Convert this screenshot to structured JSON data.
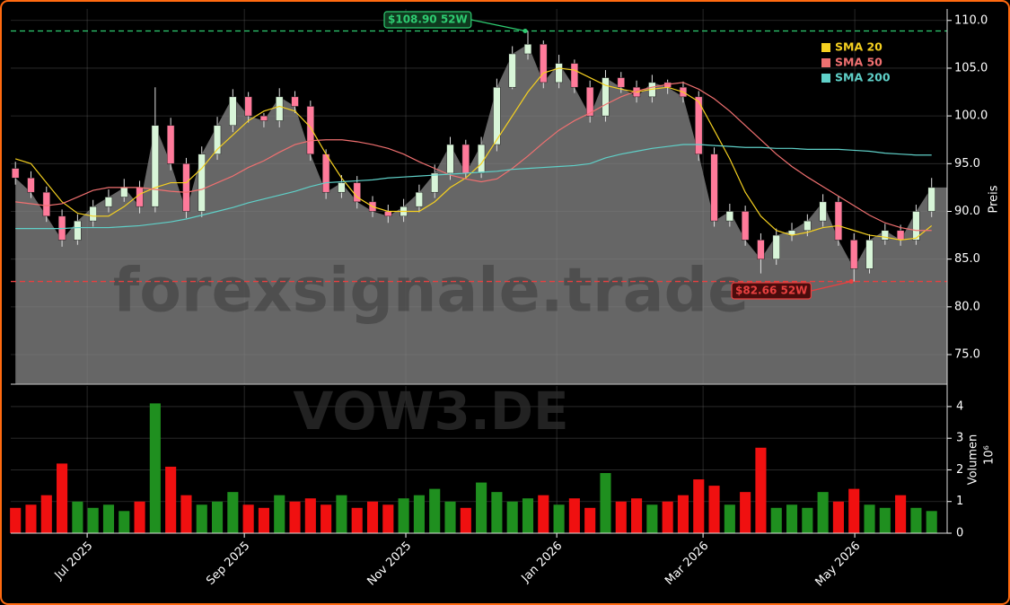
{
  "chart_data": {
    "type": "candlestick",
    "watermark": "forexsignale.trade",
    "symbol": "VOW3.DE",
    "x": [
      0,
      1,
      2,
      3,
      4,
      5,
      6,
      7,
      8,
      9,
      10,
      11,
      12,
      13,
      14,
      15,
      16,
      17,
      18,
      19,
      20,
      21,
      22,
      23,
      24,
      25,
      26,
      27,
      28,
      29,
      30,
      31,
      32,
      33,
      34,
      35,
      36,
      37,
      38,
      39,
      40,
      41,
      42,
      43,
      44,
      45,
      46,
      47,
      48,
      49,
      50,
      51,
      52,
      53,
      54,
      55,
      56,
      57,
      58,
      59
    ],
    "open": [
      94.5,
      93.5,
      92,
      89.5,
      87,
      89,
      90.5,
      91.5,
      92.5,
      90.5,
      99,
      95,
      90,
      96,
      99,
      102,
      100,
      99.5,
      102,
      101,
      96,
      92,
      93,
      91,
      90,
      89.5,
      90.5,
      92,
      94,
      97,
      94,
      97,
      103,
      106.5,
      107.5,
      103.5,
      105.5,
      103,
      100,
      104,
      103,
      102,
      103.5,
      103,
      102,
      96,
      89,
      90,
      87,
      85,
      87.5,
      88,
      89,
      91,
      87,
      84,
      87,
      88,
      87,
      90
    ],
    "high": [
      95.2,
      94.2,
      92.6,
      90.2,
      89.7,
      91.2,
      92.3,
      93.4,
      93.2,
      103,
      99.8,
      95.6,
      96.8,
      99.9,
      102.8,
      102.5,
      100.3,
      102.9,
      102.6,
      101.6,
      96.5,
      93.8,
      93.7,
      91.6,
      90.7,
      91.3,
      92.8,
      94.9,
      97.8,
      97.5,
      97.8,
      103.9,
      107.3,
      108.9,
      107.9,
      106.4,
      105.9,
      103.7,
      104.8,
      104.6,
      103.7,
      104.3,
      103.8,
      103.6,
      102.6,
      96.7,
      90.8,
      90.6,
      87.7,
      88.2,
      88.8,
      89.7,
      91.8,
      91.6,
      87.7,
      87.6,
      88.7,
      88.6,
      90.7,
      93.5
    ],
    "low": [
      92.8,
      91.4,
      88.9,
      86.3,
      86.5,
      88.4,
      89.9,
      91,
      89.8,
      89.9,
      94.3,
      89.3,
      89.4,
      95.4,
      98.3,
      99.3,
      98.8,
      98.8,
      100.3,
      95.3,
      91.3,
      91.4,
      90.3,
      89.4,
      88.8,
      88.9,
      89.9,
      91.4,
      93.3,
      93.4,
      93.5,
      96.3,
      102.8,
      105.9,
      102.9,
      102.9,
      102.4,
      99.3,
      99.4,
      102.4,
      101.4,
      101.4,
      102.3,
      101.4,
      95.3,
      88.4,
      88.4,
      86.4,
      83.5,
      84.4,
      86.9,
      87.4,
      88.4,
      86.4,
      82.66,
      83.5,
      86.5,
      86.4,
      86.5,
      89.4
    ],
    "close": [
      93.5,
      92,
      89.5,
      87,
      89,
      90.5,
      91.5,
      92.5,
      90.5,
      99,
      95,
      90,
      96,
      99,
      102,
      100,
      99.5,
      102,
      101,
      96,
      92,
      93,
      91,
      90,
      89.5,
      90.5,
      92,
      94,
      97,
      94,
      97,
      103,
      106.5,
      107.5,
      103.5,
      105.5,
      103,
      100,
      104,
      103,
      102,
      103.5,
      103,
      102,
      96,
      89,
      90,
      87,
      85,
      87.5,
      88,
      89,
      91,
      87,
      84,
      87,
      88,
      87,
      90,
      92.5
    ],
    "volume": [
      0.8,
      0.9,
      1.2,
      2.2,
      1.0,
      0.8,
      0.9,
      0.7,
      1.0,
      4.1,
      2.1,
      1.2,
      0.9,
      1.0,
      1.3,
      0.9,
      0.8,
      1.2,
      1.0,
      1.1,
      0.9,
      1.2,
      0.8,
      1.0,
      0.9,
      1.1,
      1.2,
      1.4,
      1.0,
      0.8,
      1.6,
      1.3,
      1.0,
      1.1,
      1.2,
      0.9,
      1.1,
      0.8,
      1.9,
      1.0,
      1.1,
      0.9,
      1.0,
      1.2,
      1.7,
      1.5,
      0.9,
      1.3,
      2.7,
      0.8,
      0.9,
      0.8,
      1.3,
      1.0,
      1.4,
      0.9,
      0.8,
      1.2,
      0.8,
      0.7
    ],
    "up_color": "#d8f5d8",
    "down_color": "#ff7a9a",
    "volume_up_color": "#1f8f1f",
    "volume_down_color": "#f01010",
    "area_color": "#6b6b6b",
    "series": [
      {
        "name": "SMA 20",
        "color": "#f5d020",
        "values": [
          95.5,
          95,
          93,
          91,
          89.8,
          89.5,
          89.5,
          90.5,
          91.8,
          92.5,
          93,
          93,
          94.5,
          96.5,
          98,
          99.5,
          100.5,
          101,
          100.5,
          98.8,
          96,
          93.5,
          91.5,
          90.5,
          90,
          90,
          90,
          91,
          92.5,
          93.5,
          95,
          97.5,
          100,
          102.5,
          104.5,
          105,
          104.8,
          104,
          103.2,
          102.8,
          102.5,
          102.8,
          103,
          102.5,
          101.5,
          98.5,
          95.5,
          92,
          89.5,
          88,
          87.5,
          87.8,
          88.3,
          88.5,
          88,
          87.5,
          87.3,
          87,
          87.2,
          88.5
        ]
      },
      {
        "name": "SMA 50",
        "color": "#f07070",
        "values": [
          91,
          90.8,
          90.6,
          90.8,
          91.5,
          92.2,
          92.5,
          92.5,
          92.5,
          92.3,
          92.1,
          92,
          92.3,
          93,
          93.7,
          94.6,
          95.3,
          96.2,
          97,
          97.4,
          97.5,
          97.5,
          97.3,
          97,
          96.6,
          96,
          95.2,
          94.5,
          93.8,
          93.4,
          93.1,
          93.4,
          94.5,
          95.8,
          97.2,
          98.5,
          99.5,
          100.3,
          101.2,
          102,
          102.6,
          103,
          103.3,
          103.5,
          102.8,
          101.8,
          100.5,
          99,
          97.5,
          96,
          94.7,
          93.6,
          92.6,
          91.6,
          90.6,
          89.6,
          88.8,
          88.3,
          88,
          88
        ]
      },
      {
        "name": "SMA 200",
        "color": "#5fd0c8",
        "values": [
          88.2,
          88.2,
          88.2,
          88.2,
          88.3,
          88.3,
          88.3,
          88.4,
          88.5,
          88.7,
          88.9,
          89.2,
          89.6,
          90,
          90.4,
          90.9,
          91.3,
          91.7,
          92.1,
          92.6,
          93,
          93.1,
          93.2,
          93.3,
          93.5,
          93.6,
          93.7,
          93.8,
          93.9,
          94,
          94.1,
          94.2,
          94.4,
          94.5,
          94.6,
          94.7,
          94.8,
          95,
          95.6,
          96,
          96.3,
          96.6,
          96.8,
          97,
          97,
          96.9,
          96.8,
          96.7,
          96.7,
          96.6,
          96.6,
          96.5,
          96.5,
          96.5,
          96.4,
          96.3,
          96.1,
          96,
          95.9,
          95.9
        ]
      }
    ],
    "hlines": [
      {
        "value": 108.9,
        "label": "$108.90 52W",
        "color": "#2ecc71"
      },
      {
        "value": 82.66,
        "label": "$82.66 52W",
        "color": "#e84040"
      }
    ],
    "xlim": [
      -0.3,
      60
    ],
    "xticks": [
      {
        "value": 4.62,
        "label": "Jul 2025"
      },
      {
        "value": 14.74,
        "label": "Sep 2025"
      },
      {
        "value": 25.14,
        "label": "Nov 2025"
      },
      {
        "value": 34.86,
        "label": "Jan 2026"
      },
      {
        "value": 44.28,
        "label": "Mar 2026"
      },
      {
        "value": 54.05,
        "label": "May 2026"
      }
    ],
    "ylim": [
      71.9,
      111.2
    ],
    "yticks": [
      {
        "value": 75,
        "label": "75.0"
      },
      {
        "value": 80,
        "label": "80.0"
      },
      {
        "value": 85,
        "label": "85.0"
      },
      {
        "value": 90,
        "label": "90.0"
      },
      {
        "value": 95,
        "label": "95.0"
      },
      {
        "value": 100,
        "label": "100.0"
      },
      {
        "value": 105,
        "label": "105.0"
      },
      {
        "value": 110,
        "label": "110.0"
      }
    ],
    "ylabel": "Preis",
    "volume_ylim": [
      0,
      4.65
    ],
    "volume_yticks": [
      0,
      1,
      2,
      3,
      4
    ],
    "volume_ylabel": "Volumen",
    "volume_scale_label": "10⁶",
    "grid": true,
    "legend": "upper right"
  }
}
